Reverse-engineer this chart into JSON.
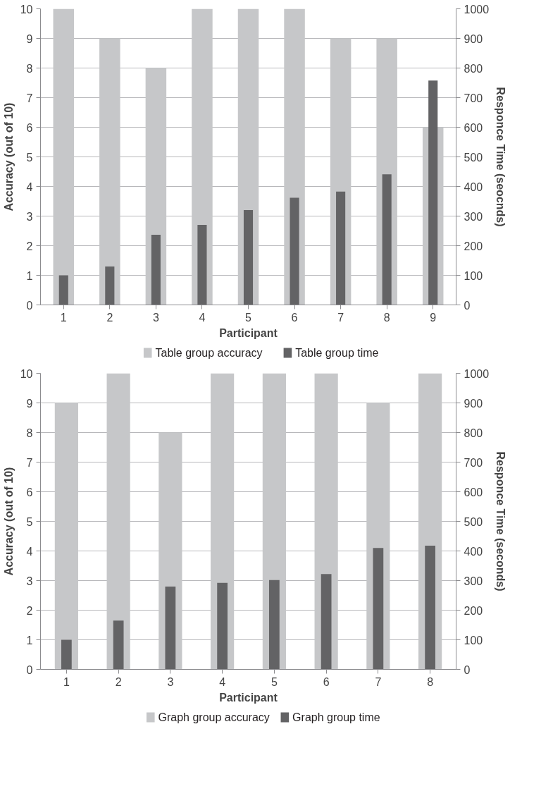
{
  "chart_data": [
    {
      "type": "bar",
      "xlabel": "Participant",
      "ylabel": "Accuracy (out of 10)",
      "y2label": "Responce Time (seocnds)",
      "categories": [
        "1",
        "2",
        "3",
        "4",
        "5",
        "6",
        "7",
        "8",
        "9"
      ],
      "series": [
        {
          "name": "Table  group accuracy",
          "color": "#c6c7c9",
          "values": [
            10,
            9,
            8,
            10,
            10,
            10,
            9,
            9,
            6
          ]
        },
        {
          "name": "Table group time",
          "color": "#636365",
          "axis": "y2",
          "values": [
            100,
            130,
            237,
            270,
            320,
            362,
            383,
            441,
            758
          ]
        }
      ],
      "ylim": [
        0,
        10
      ],
      "yticks": [
        0,
        1,
        2,
        3,
        4,
        5,
        6,
        7,
        8,
        9,
        10
      ],
      "y2lim": [
        0,
        1000
      ],
      "y2ticks": [
        0,
        100,
        200,
        300,
        400,
        500,
        600,
        700,
        800,
        900,
        1000
      ],
      "grid": "y",
      "legend": "bottom"
    },
    {
      "type": "bar",
      "xlabel": "Participant",
      "ylabel": "Accuracy (out of 10)",
      "y2label": "Responce Time (seconds)",
      "categories": [
        "1",
        "2",
        "3",
        "4",
        "5",
        "6",
        "7",
        "8"
      ],
      "series": [
        {
          "name": "Graph group accuracy",
          "color": "#c6c7c9",
          "values": [
            9,
            10,
            8,
            10,
            10,
            10,
            9,
            10
          ]
        },
        {
          "name": "Graph group time",
          "color": "#636365",
          "axis": "y2",
          "values": [
            100,
            165,
            280,
            292,
            302,
            322,
            410,
            418
          ]
        }
      ],
      "ylim": [
        0,
        10
      ],
      "yticks": [
        0,
        1,
        2,
        3,
        4,
        5,
        6,
        7,
        8,
        9,
        10
      ],
      "y2lim": [
        0,
        1000
      ],
      "y2ticks": [
        0,
        100,
        200,
        300,
        400,
        500,
        600,
        700,
        800,
        900,
        1000
      ],
      "grid": "y",
      "legend": "bottom"
    }
  ]
}
